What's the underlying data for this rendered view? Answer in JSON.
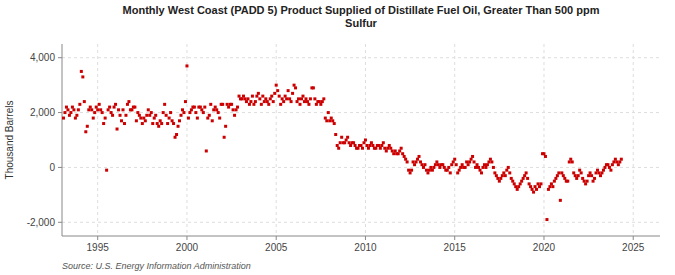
{
  "chart_data": {
    "type": "scatter",
    "title": "Monthly West Coast (PADD 5) Product Supplied of Distillate Fuel Oil, Greater Than 500 ppm\nSulfur",
    "ylabel": "Thousand Barrels",
    "source": "Source: U.S. Energy Information Administration",
    "color": "#cc0000",
    "marker": "square",
    "grid": true,
    "xlim": [
      1993.0,
      2026.5
    ],
    "ylim": [
      -2500,
      4500
    ],
    "xticks": [
      1995,
      2000,
      2005,
      2010,
      2015,
      2020,
      2025
    ],
    "yticks": [
      {
        "value": -2000,
        "label": "-2,000"
      },
      0,
      {
        "value": 2000,
        "label": "2,000"
      },
      {
        "value": 4000,
        "label": "4,000"
      }
    ],
    "x": [
      1993.083,
      1993.167,
      1993.25,
      1993.333,
      1993.417,
      1993.5,
      1993.583,
      1993.667,
      1993.75,
      1993.833,
      1993.917,
      1994.0,
      1994.083,
      1994.167,
      1994.25,
      1994.333,
      1994.417,
      1994.5,
      1994.583,
      1994.667,
      1994.75,
      1994.833,
      1994.917,
      1995.0,
      1995.083,
      1995.167,
      1995.25,
      1995.333,
      1995.417,
      1995.5,
      1995.583,
      1995.667,
      1995.75,
      1995.833,
      1995.917,
      1996.0,
      1996.083,
      1996.167,
      1996.25,
      1996.333,
      1996.417,
      1996.5,
      1996.583,
      1996.667,
      1996.75,
      1996.833,
      1996.917,
      1997.0,
      1997.083,
      1997.167,
      1997.25,
      1997.333,
      1997.417,
      1997.5,
      1997.583,
      1997.667,
      1997.75,
      1997.833,
      1997.917,
      1998.0,
      1998.083,
      1998.167,
      1998.25,
      1998.333,
      1998.417,
      1998.5,
      1998.583,
      1998.667,
      1998.75,
      1998.833,
      1998.917,
      1999.0,
      1999.083,
      1999.167,
      1999.25,
      1999.333,
      1999.417,
      1999.5,
      1999.583,
      1999.667,
      1999.75,
      1999.833,
      1999.917,
      2000.0,
      2000.083,
      2000.167,
      2000.25,
      2000.333,
      2000.417,
      2000.5,
      2000.583,
      2000.667,
      2000.75,
      2000.833,
      2000.917,
      2001.0,
      2001.083,
      2001.167,
      2001.25,
      2001.333,
      2001.417,
      2001.5,
      2001.583,
      2001.667,
      2001.75,
      2001.833,
      2001.917,
      2002.0,
      2002.083,
      2002.167,
      2002.25,
      2002.333,
      2002.417,
      2002.5,
      2002.583,
      2002.667,
      2002.75,
      2002.833,
      2002.917,
      2003.0,
      2003.083,
      2003.167,
      2003.25,
      2003.333,
      2003.417,
      2003.5,
      2003.583,
      2003.667,
      2003.75,
      2003.833,
      2003.917,
      2004.0,
      2004.083,
      2004.167,
      2004.25,
      2004.333,
      2004.417,
      2004.5,
      2004.583,
      2004.667,
      2004.75,
      2004.833,
      2004.917,
      2005.0,
      2005.083,
      2005.167,
      2005.25,
      2005.333,
      2005.417,
      2005.5,
      2005.583,
      2005.667,
      2005.75,
      2005.833,
      2005.917,
      2006.0,
      2006.083,
      2006.167,
      2006.25,
      2006.333,
      2006.417,
      2006.5,
      2006.583,
      2006.667,
      2006.75,
      2006.833,
      2006.917,
      2007.0,
      2007.083,
      2007.167,
      2007.25,
      2007.333,
      2007.417,
      2007.5,
      2007.583,
      2007.667,
      2007.75,
      2007.833,
      2007.917,
      2008.0,
      2008.083,
      2008.167,
      2008.25,
      2008.333,
      2008.417,
      2008.5,
      2008.583,
      2008.667,
      2008.75,
      2008.833,
      2008.917,
      2009.0,
      2009.083,
      2009.167,
      2009.25,
      2009.333,
      2009.417,
      2009.5,
      2009.583,
      2009.667,
      2009.75,
      2009.833,
      2009.917,
      2010.0,
      2010.083,
      2010.167,
      2010.25,
      2010.333,
      2010.417,
      2010.5,
      2010.583,
      2010.667,
      2010.75,
      2010.833,
      2010.917,
      2011.0,
      2011.083,
      2011.167,
      2011.25,
      2011.333,
      2011.417,
      2011.5,
      2011.583,
      2011.667,
      2011.75,
      2011.833,
      2011.917,
      2012.0,
      2012.083,
      2012.167,
      2012.25,
      2012.333,
      2012.417,
      2012.5,
      2012.583,
      2012.667,
      2012.75,
      2012.833,
      2012.917,
      2013.0,
      2013.083,
      2013.167,
      2013.25,
      2013.333,
      2013.417,
      2013.5,
      2013.583,
      2013.667,
      2013.75,
      2013.833,
      2013.917,
      2014.0,
      2014.083,
      2014.167,
      2014.25,
      2014.333,
      2014.417,
      2014.5,
      2014.583,
      2014.667,
      2014.75,
      2014.833,
      2014.917,
      2015.0,
      2015.083,
      2015.167,
      2015.25,
      2015.333,
      2015.417,
      2015.5,
      2015.583,
      2015.667,
      2015.75,
      2015.833,
      2015.917,
      2016.0,
      2016.083,
      2016.167,
      2016.25,
      2016.333,
      2016.417,
      2016.5,
      2016.583,
      2016.667,
      2016.75,
      2016.833,
      2016.917,
      2017.0,
      2017.083,
      2017.167,
      2017.25,
      2017.333,
      2017.417,
      2017.5,
      2017.583,
      2017.667,
      2017.75,
      2017.833,
      2017.917,
      2018.0,
      2018.083,
      2018.167,
      2018.25,
      2018.333,
      2018.417,
      2018.5,
      2018.583,
      2018.667,
      2018.75,
      2018.833,
      2018.917,
      2019.0,
      2019.083,
      2019.167,
      2019.25,
      2019.333,
      2019.417,
      2019.5,
      2019.583,
      2019.667,
      2019.75,
      2019.833,
      2019.917,
      2020.0,
      2020.083,
      2020.167,
      2020.25,
      2020.333,
      2020.417,
      2020.5,
      2020.583,
      2020.667,
      2020.75,
      2020.833,
      2020.917,
      2021.0,
      2021.083,
      2021.167,
      2021.25,
      2021.333,
      2021.417,
      2021.5,
      2021.583,
      2021.667,
      2021.75,
      2021.833,
      2021.917,
      2022.0,
      2022.083,
      2022.167,
      2022.25,
      2022.333,
      2022.417,
      2022.5,
      2022.583,
      2022.667,
      2022.75,
      2022.833,
      2022.917,
      2023.0,
      2023.083,
      2023.167,
      2023.25,
      2023.333,
      2023.417,
      2023.5,
      2023.583,
      2023.667,
      2023.75,
      2023.833,
      2023.917,
      2024.0,
      2024.083,
      2024.167,
      2024.25,
      2024.333
    ],
    "values": [
      1800,
      2000,
      2200,
      2100,
      1900,
      2000,
      2200,
      2100,
      1800,
      1900,
      2100,
      2300,
      3500,
      3300,
      2400,
      1300,
      1500,
      2100,
      2200,
      2100,
      1800,
      2000,
      2200,
      2100,
      2300,
      2100,
      2000,
      1600,
      1800,
      -100,
      2100,
      2200,
      2000,
      1900,
      2200,
      2300,
      1400,
      2100,
      1900,
      1700,
      2100,
      1600,
      1900,
      2300,
      2400,
      2100,
      2100,
      2200,
      2200,
      1700,
      2000,
      1900,
      1800,
      1600,
      1800,
      1700,
      1900,
      2100,
      1900,
      2000,
      1600,
      1800,
      1900,
      1600,
      1500,
      1700,
      1600,
      2000,
      2300,
      1900,
      1600,
      1800,
      2000,
      1700,
      1600,
      1100,
      1200,
      1500,
      1700,
      1900,
      2100,
      2000,
      2400,
      3700,
      1800,
      2000,
      2100,
      2200,
      2200,
      2000,
      1800,
      2200,
      2200,
      2100,
      2000,
      2200,
      600,
      1800,
      1900,
      2300,
      1700,
      2100,
      2200,
      2100,
      2000,
      1800,
      2300,
      2300,
      1100,
      1500,
      2300,
      2200,
      2300,
      2300,
      2100,
      1900,
      2100,
      2200,
      2600,
      2500,
      2500,
      2600,
      2500,
      2400,
      2500,
      2300,
      2400,
      2600,
      2300,
      2400,
      2600,
      2700,
      2500,
      2300,
      2600,
      2400,
      2500,
      2400,
      2300,
      2500,
      2600,
      2400,
      2700,
      3000,
      2800,
      2600,
      2300,
      2500,
      2400,
      2600,
      2500,
      2800,
      2500,
      2400,
      2700,
      3000,
      2900,
      2400,
      2500,
      2300,
      2500,
      2600,
      2400,
      2500,
      2400,
      2300,
      2500,
      2900,
      2900,
      2500,
      2300,
      2400,
      2400,
      2300,
      2400,
      2500,
      1800,
      1700,
      2000,
      1700,
      1800,
      1700,
      1600,
      1200,
      800,
      700,
      900,
      1100,
      900,
      900,
      1000,
      1100,
      900,
      800,
      900,
      900,
      800,
      700,
      700,
      800,
      800,
      700,
      900,
      1000,
      800,
      700,
      800,
      900,
      800,
      700,
      700,
      800,
      800,
      700,
      800,
      900,
      700,
      600,
      700,
      800,
      700,
      600,
      500,
      600,
      500,
      500,
      600,
      700,
      500,
      400,
      300,
      200,
      -100,
      -200,
      -100,
      200,
      100,
      200,
      300,
      400,
      200,
      100,
      0,
      100,
      -100,
      -200,
      -100,
      0,
      -100,
      0,
      100,
      200,
      100,
      0,
      100,
      100,
      0,
      -100,
      -100,
      0,
      -200,
      100,
      200,
      300,
      100,
      -200,
      -100,
      0,
      100,
      0,
      0,
      200,
      100,
      200,
      300,
      400,
      200,
      0,
      100,
      0,
      -100,
      -200,
      0,
      100,
      0,
      100,
      200,
      300,
      200,
      0,
      -200,
      -300,
      -400,
      -500,
      -400,
      -300,
      -200,
      -300,
      -100,
      0,
      -200,
      -400,
      -500,
      -600,
      -700,
      -800,
      -700,
      -600,
      -500,
      -400,
      -300,
      -200,
      -400,
      -600,
      -700,
      -800,
      -900,
      -700,
      -800,
      -600,
      -700,
      -600,
      500,
      500,
      400,
      -1900,
      -800,
      -700,
      -600,
      -700,
      -500,
      -400,
      -300,
      -200,
      -1200,
      -200,
      -300,
      -400,
      -500,
      -500,
      200,
      300,
      200,
      -200,
      -300,
      -400,
      -300,
      -100,
      -200,
      -400,
      -500,
      -600,
      -500,
      -300,
      -200,
      -300,
      -500,
      -400,
      -200,
      -100,
      -200,
      -300,
      -200,
      -100,
      0,
      100,
      100,
      0,
      -100,
      100,
      200,
      300,
      200,
      100,
      200,
      300
    ]
  }
}
